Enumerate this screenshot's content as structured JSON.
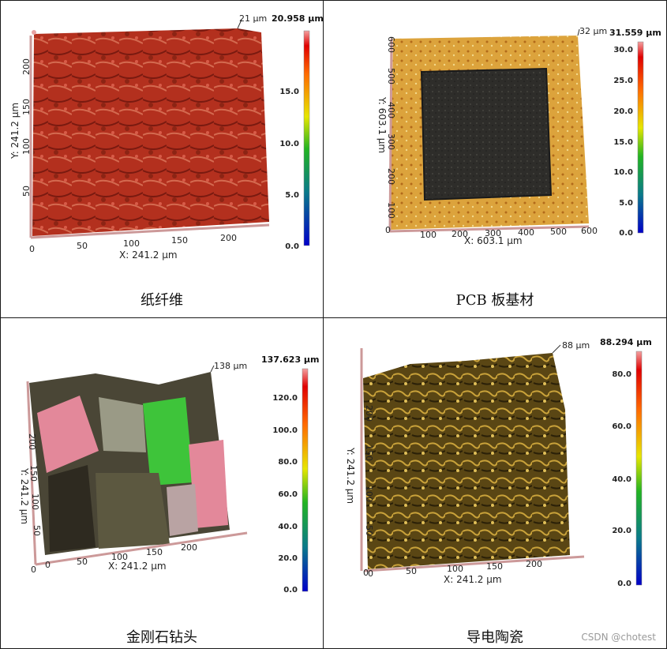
{
  "panels": [
    {
      "caption": "纸纤维",
      "max_label": "20.958 µm",
      "peak_label": "21 µm",
      "x_axis_label": "X: 241.2 µm",
      "y_axis_label": "Y: 241.2 µm",
      "x_ticks": [
        "0",
        "50",
        "100",
        "150",
        "200"
      ],
      "y_ticks": [
        "50",
        "100",
        "150",
        "200"
      ],
      "y_zero": "0",
      "colorbar_ticks": [
        "15.0",
        "10.0",
        "5.0",
        "0.0"
      ],
      "surface_color": "#b3301e"
    },
    {
      "caption": "PCB 板基材",
      "max_label": "31.559 µm",
      "peak_label": "32 µm",
      "x_axis_label": "X: 603.1 µm",
      "y_axis_label": "Y: 603.1 µm",
      "x_ticks": [
        "100",
        "200",
        "300",
        "400",
        "500",
        "600"
      ],
      "y_ticks": [
        "100",
        "200",
        "300",
        "400",
        "500",
        "600"
      ],
      "y_zero": "0",
      "colorbar_ticks": [
        "30.0",
        "25.0",
        "20.0",
        "15.0",
        "10.0",
        "5.0",
        "0.0"
      ],
      "surface_color": "#d9a23a"
    },
    {
      "caption": "金刚石钻头",
      "max_label": "137.623 µm",
      "peak_label": "138 µm",
      "x_axis_label": "X: 241.2 µm",
      "y_axis_label": "Y: 241.2 µm",
      "x_ticks": [
        "0",
        "50",
        "100",
        "150",
        "200"
      ],
      "y_ticks": [
        "50",
        "100",
        "150",
        "200"
      ],
      "y_zero": "0",
      "colorbar_ticks": [
        "120.0",
        "100.0",
        "80.0",
        "60.0",
        "40.0",
        "20.0",
        "0.0"
      ],
      "surface_color": "#6a6a3c"
    },
    {
      "caption": "导电陶瓷",
      "max_label": "88.294 µm",
      "peak_label": "88 µm",
      "x_axis_label": "X: 241.2 µm",
      "y_axis_label": "Y: 241.2 µm",
      "x_ticks": [
        "0",
        "50",
        "100",
        "150",
        "200"
      ],
      "y_ticks": [
        "50",
        "100",
        "150",
        "200"
      ],
      "y_zero": "0",
      "colorbar_ticks": [
        "80.0",
        "60.0",
        "40.0",
        "20.0",
        "0.0"
      ],
      "surface_color": "#6e5a1e"
    }
  ],
  "watermark": "CSDN @chotest"
}
